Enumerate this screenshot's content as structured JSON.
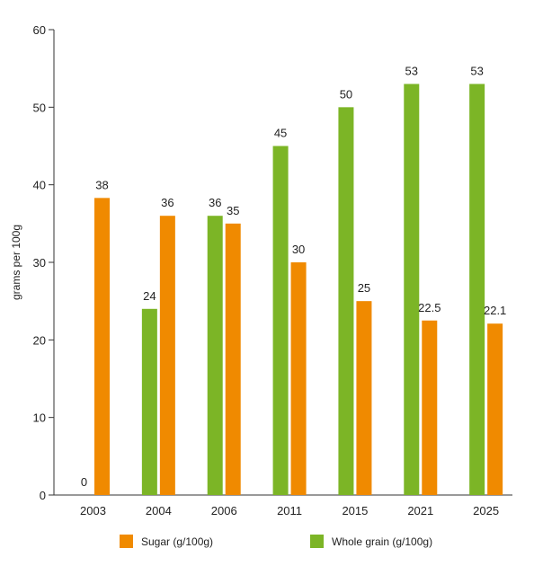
{
  "chart_data": {
    "type": "bar",
    "title": "",
    "xlabel": "",
    "ylabel": "grams per 100g",
    "ylim": [
      0,
      60
    ],
    "yticks": [
      0,
      10,
      20,
      30,
      40,
      50,
      60
    ],
    "categories": [
      "2003",
      "2004",
      "2006",
      "2011",
      "2015",
      "2021",
      "2025"
    ],
    "series": [
      {
        "name": "Whole grain (g/100g)",
        "color": "#7cb526",
        "values": [
          0,
          24,
          36,
          45,
          50,
          53,
          53
        ],
        "labels": [
          "0",
          "24",
          "36",
          "45",
          "50",
          "53",
          "53"
        ]
      },
      {
        "name": "Sugar (g/100g)",
        "color": "#f08a00",
        "values": [
          38.3,
          36,
          35,
          30,
          25,
          22.5,
          22.1
        ],
        "labels": [
          "38",
          "36",
          "35",
          "30",
          "25",
          "22.5",
          "22.1"
        ]
      }
    ],
    "legend": {
      "position": "bottom",
      "items": [
        {
          "name": "Sugar (g/100g)",
          "color": "#f08a00"
        },
        {
          "name": "Whole grain (g/100g)",
          "color": "#7cb526"
        }
      ]
    },
    "grid": false
  }
}
